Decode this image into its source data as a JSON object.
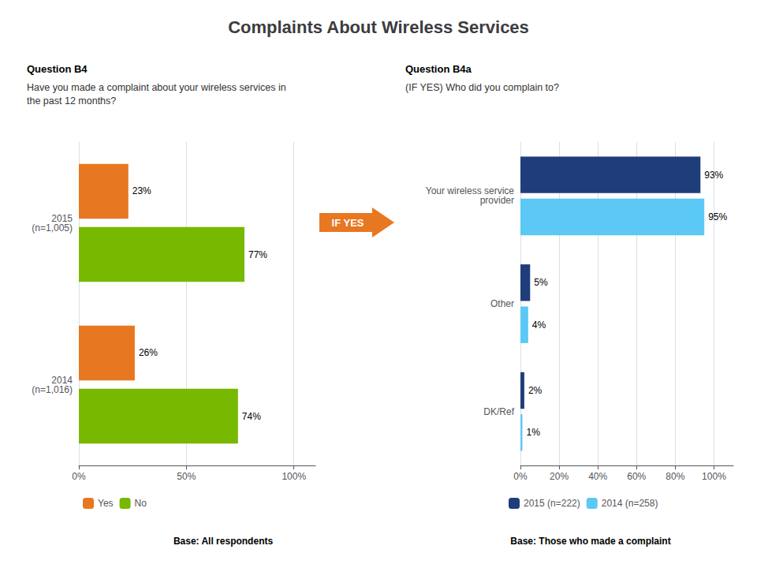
{
  "title": "Complaints About Wireless Services",
  "chart_data": [
    {
      "type": "bar",
      "orientation": "horizontal",
      "title": "Question B4",
      "subtitle": "Have you made a complaint about your wireless services in\nthe past 12 months?",
      "categories": [
        "2015\n(n=1,005)",
        "2014\n(n=1,016)"
      ],
      "series": [
        {
          "name": "Yes",
          "color": "#e87722",
          "values": [
            23,
            26
          ],
          "value_labels": [
            "23%",
            "26%"
          ]
        },
        {
          "name": "No",
          "color": "#77b800",
          "values": [
            77,
            74
          ],
          "value_labels": [
            "77%",
            "74%"
          ]
        }
      ],
      "xlim": [
        0,
        110
      ],
      "xticks": [
        {
          "value": 0,
          "label": "0%"
        },
        {
          "value": 50,
          "label": "50%"
        },
        {
          "value": 100,
          "label": "100%"
        }
      ],
      "grid": true,
      "legend": "bottom",
      "data_labels": true,
      "annotations": [
        "Base: All respondents"
      ]
    },
    {
      "type": "bar",
      "orientation": "horizontal",
      "title": "Question B4a",
      "subtitle": "(IF YES) Who did you complain to?",
      "categories": [
        "Your wireless service\nprovider",
        "Other",
        "DK/Ref"
      ],
      "series": [
        {
          "name": "2015 (n=222)",
          "color": "#1f3d7a",
          "values": [
            93,
            5,
            2
          ],
          "value_labels": [
            "93%",
            "5%",
            "2%"
          ]
        },
        {
          "name": "2014 (n=258)",
          "color": "#5bc8f5",
          "values": [
            95,
            4,
            1
          ],
          "value_labels": [
            "95%",
            "4%",
            "1%"
          ]
        }
      ],
      "xlim": [
        0,
        110
      ],
      "xticks": [
        {
          "value": 0,
          "label": "0%"
        },
        {
          "value": 20,
          "label": "20%"
        },
        {
          "value": 40,
          "label": "40%"
        },
        {
          "value": 60,
          "label": "60%"
        },
        {
          "value": 80,
          "label": "80%"
        },
        {
          "value": 100,
          "label": "100%"
        }
      ],
      "grid": true,
      "legend": "bottom",
      "data_labels": true,
      "annotations": [
        "IF YES",
        "Base: Those who made a complaint"
      ]
    }
  ]
}
